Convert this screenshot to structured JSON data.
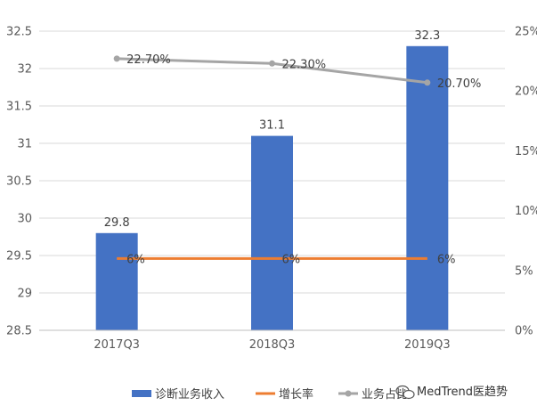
{
  "chart_data": {
    "type": "bar",
    "categories": [
      "2017Q3",
      "2018Q3",
      "2019Q3"
    ],
    "series": [
      {
        "name": "诊断业务收入",
        "kind": "bar",
        "axis": "left",
        "color": "#4472C4",
        "values": [
          29.8,
          31.1,
          32.3
        ],
        "labels": [
          "29.8",
          "31.1",
          "32.3"
        ]
      },
      {
        "name": "增长率",
        "kind": "line",
        "axis": "right",
        "color": "#ED7D31",
        "values": [
          6,
          6,
          6
        ],
        "labels": [
          "6%",
          "6%",
          "6%"
        ]
      },
      {
        "name": "业务占比",
        "kind": "line",
        "axis": "right",
        "color": "#A5A5A5",
        "values": [
          22.7,
          22.3,
          20.7
        ],
        "labels": [
          "22.70%",
          "22.30%",
          "20.70%"
        ]
      }
    ],
    "left_axis": {
      "min": 28.5,
      "max": 32.5,
      "ticks": [
        "28.5",
        "29",
        "29.5",
        "30",
        "30.5",
        "31",
        "31.5",
        "32",
        "32.5"
      ]
    },
    "right_axis": {
      "min": 0,
      "max": 25,
      "ticks": [
        "0%",
        "5%",
        "10%",
        "15%",
        "20%",
        "25%"
      ]
    },
    "grid": true,
    "legend_position": "bottom"
  },
  "watermark": "MedTrend医趋势"
}
